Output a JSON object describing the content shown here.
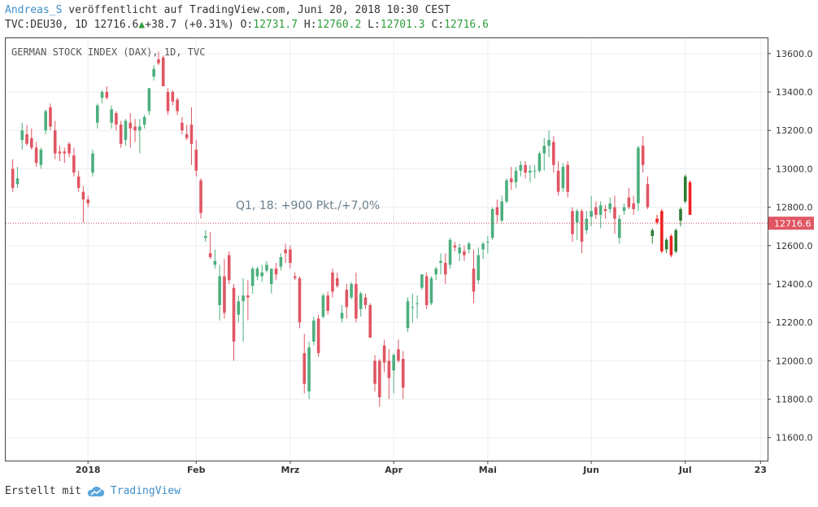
{
  "header": {
    "author": "Andreas_S",
    "published": "veröffentlicht auf TradingView.com, Juni 20, 2018 10:30 CEST",
    "symbol": "TVC:DEU30, 1D",
    "last": "12716.6",
    "change_arrow": "▲",
    "change": "+38.7 (+0.31%)",
    "open_label": "O:",
    "open": "12731.7",
    "high_label": "H:",
    "high": "12760.2",
    "low_label": "L:",
    "low": "12701.3",
    "close_label": "C:",
    "close": "12716.6"
  },
  "footer": {
    "created_with": "Erstellt mit",
    "brand": "TradingView"
  },
  "colors": {
    "up": "#4caf7d",
    "down": "#e05663",
    "up_recent": "#2e7d32",
    "down_recent": "#ee2222",
    "grid": "#eaeef2",
    "price_line": "#d14b58",
    "price_badge": "#e05663"
  },
  "chart_data": {
    "type": "candlestick",
    "title": "GERMAN STOCK INDEX (DAX), 1D, TVC",
    "annotation": "Q1, 18: +900 Pkt./+7,0%",
    "current_price": 12716.6,
    "current_price_label": "12716.6",
    "ylim": [
      11480,
      13680
    ],
    "y_ticks": [
      11600,
      11800,
      12000,
      12200,
      12400,
      12600,
      12800,
      13000,
      13200,
      13400,
      13600
    ],
    "y_tick_labels": [
      "11600.0",
      "11800.0",
      "12000.0",
      "12200.0",
      "12400.0",
      "12600.0",
      "12800.0",
      "13000.0",
      "13200.0",
      "13400.0",
      "13600.0"
    ],
    "x_ticks": [
      {
        "label": "2018",
        "index": 17
      },
      {
        "label": "Feb",
        "index": 40
      },
      {
        "label": "Mrz",
        "index": 60
      },
      {
        "label": "Apr",
        "index": 82
      },
      {
        "label": "Mai",
        "index": 102
      },
      {
        "label": "Jun",
        "index": 124
      },
      {
        "label": "Jul",
        "index": 144
      },
      {
        "label": "23",
        "index": 160
      }
    ],
    "x_count": 162,
    "candles": [
      [
        1,
        13000,
        13050,
        12880,
        12900
      ],
      [
        2,
        12920,
        13010,
        12900,
        12950
      ],
      [
        3,
        13150,
        13240,
        13100,
        13200
      ],
      [
        4,
        13180,
        13230,
        13120,
        13130
      ],
      [
        5,
        13160,
        13210,
        13100,
        13110
      ],
      [
        6,
        13110,
        13140,
        13010,
        13030
      ],
      [
        7,
        13020,
        13110,
        13000,
        13100
      ],
      [
        8,
        13200,
        13310,
        13180,
        13300
      ],
      [
        9,
        13320,
        13340,
        13200,
        13220
      ],
      [
        10,
        13200,
        13250,
        13050,
        13080
      ],
      [
        11,
        13090,
        13120,
        13040,
        13080
      ],
      [
        12,
        13090,
        13110,
        13030,
        13080
      ],
      [
        13,
        13130,
        13140,
        13060,
        13080
      ],
      [
        14,
        13070,
        13110,
        12960,
        12980
      ],
      [
        15,
        12960,
        12990,
        12880,
        12900
      ],
      [
        16,
        12880,
        12910,
        12720,
        12840
      ],
      [
        17,
        12840,
        12860,
        12800,
        12820
      ],
      [
        18,
        12980,
        13100,
        12960,
        13080
      ],
      [
        19,
        13240,
        13340,
        13210,
        13330
      ],
      [
        20,
        13370,
        13410,
        13340,
        13400
      ],
      [
        21,
        13400,
        13430,
        13360,
        13370
      ],
      [
        22,
        13240,
        13330,
        13210,
        13310
      ],
      [
        23,
        13290,
        13300,
        13200,
        13230
      ],
      [
        24,
        13230,
        13250,
        13110,
        13130
      ],
      [
        25,
        13150,
        13260,
        13120,
        13250
      ],
      [
        26,
        13240,
        13290,
        13110,
        13210
      ],
      [
        27,
        13220,
        13260,
        13140,
        13200
      ],
      [
        28,
        13200,
        13260,
        13080,
        13220
      ],
      [
        29,
        13230,
        13280,
        13210,
        13270
      ],
      [
        30,
        13300,
        13420,
        13280,
        13420
      ],
      [
        31,
        13480,
        13540,
        13460,
        13520
      ],
      [
        32,
        13570,
        13610,
        13540,
        13550
      ],
      [
        33,
        13580,
        13590,
        13430,
        13430
      ],
      [
        34,
        13400,
        13420,
        13280,
        13300
      ],
      [
        35,
        13400,
        13410,
        13330,
        13350
      ],
      [
        36,
        13360,
        13370,
        13280,
        13300
      ],
      [
        37,
        13240,
        13270,
        13180,
        13200
      ],
      [
        38,
        13180,
        13230,
        13150,
        13160
      ],
      [
        39,
        13230,
        13320,
        13020,
        13130
      ],
      [
        40,
        13100,
        13150,
        12960,
        12990
      ],
      [
        41,
        12940,
        12950,
        12740,
        12770
      ],
      [
        42,
        12640,
        12680,
        12620,
        12650
      ],
      [
        43,
        12560,
        12670,
        12530,
        12540
      ],
      [
        44,
        12500,
        12580,
        12480,
        12520
      ],
      [
        45,
        12290,
        12500,
        12210,
        12440
      ],
      [
        46,
        12440,
        12530,
        12220,
        12250
      ],
      [
        47,
        12550,
        12570,
        12400,
        12420
      ],
      [
        48,
        12380,
        12400,
        12000,
        12100
      ],
      [
        49,
        12240,
        12340,
        12200,
        12310
      ],
      [
        50,
        12310,
        12430,
        12100,
        12340
      ],
      [
        51,
        12340,
        12420,
        12210,
        12330
      ],
      [
        52,
        12390,
        12490,
        12350,
        12480
      ],
      [
        53,
        12440,
        12490,
        12420,
        12480
      ],
      [
        54,
        12440,
        12500,
        12410,
        12460
      ],
      [
        55,
        12470,
        12520,
        12460,
        12500
      ],
      [
        56,
        12400,
        12480,
        12350,
        12480
      ],
      [
        57,
        12480,
        12510,
        12420,
        12450
      ],
      [
        58,
        12490,
        12560,
        12470,
        12540
      ],
      [
        59,
        12580,
        12610,
        12510,
        12560
      ],
      [
        60,
        12580,
        12600,
        12480,
        12510
      ],
      [
        61,
        12440,
        12460,
        12420,
        12430
      ],
      [
        62,
        12430,
        12440,
        12170,
        12200
      ],
      [
        63,
        12040,
        12140,
        11830,
        11880
      ],
      [
        64,
        11840,
        12100,
        11800,
        12070
      ],
      [
        65,
        12100,
        12230,
        12080,
        12210
      ],
      [
        66,
        12220,
        12240,
        12020,
        12040
      ],
      [
        67,
        12230,
        12350,
        12220,
        12340
      ],
      [
        68,
        12340,
        12360,
        12240,
        12260
      ],
      [
        69,
        12460,
        12480,
        12330,
        12360
      ],
      [
        70,
        12430,
        12460,
        12380,
        12390
      ],
      [
        71,
        12220,
        12290,
        12200,
        12250
      ],
      [
        72,
        12370,
        12400,
        12220,
        12280
      ],
      [
        73,
        12330,
        12410,
        12320,
        12400
      ],
      [
        74,
        12400,
        12460,
        12200,
        12220
      ],
      [
        75,
        12270,
        12360,
        12230,
        12350
      ],
      [
        76,
        12330,
        12350,
        12270,
        12290
      ],
      [
        77,
        12290,
        12300,
        12120,
        12120
      ],
      [
        78,
        12000,
        12030,
        11840,
        11880
      ],
      [
        79,
        12000,
        12010,
        11760,
        11810
      ],
      [
        80,
        12080,
        12110,
        11940,
        11990
      ],
      [
        81,
        12000,
        12060,
        11800,
        11910
      ],
      [
        82,
        11950,
        12040,
        11830,
        12030
      ],
      [
        83,
        12060,
        12110,
        11990,
        12000
      ],
      [
        84,
        12010,
        12050,
        11800,
        11860
      ],
      [
        85,
        12170,
        12330,
        12150,
        12310
      ],
      [
        86,
        12280,
        12350,
        12200,
        12280
      ],
      [
        87,
        12300,
        12340,
        12220,
        12300
      ],
      [
        88,
        12380,
        12450,
        12370,
        12450
      ],
      [
        89,
        12440,
        12460,
        12270,
        12290
      ],
      [
        90,
        12300,
        12440,
        12290,
        12430
      ],
      [
        91,
        12450,
        12490,
        12420,
        12480
      ],
      [
        92,
        12510,
        12560,
        12450,
        12520
      ],
      [
        93,
        12510,
        12560,
        12400,
        12450
      ],
      [
        94,
        12500,
        12640,
        12480,
        12630
      ],
      [
        95,
        12600,
        12620,
        12570,
        12590
      ],
      [
        96,
        12560,
        12610,
        12520,
        12590
      ],
      [
        97,
        12570,
        12600,
        12520,
        12550
      ],
      [
        98,
        12580,
        12620,
        12560,
        12610
      ],
      [
        99,
        12480,
        12580,
        12300,
        12360
      ],
      [
        100,
        12420,
        12590,
        12400,
        12550
      ],
      [
        101,
        12580,
        12620,
        12530,
        12610
      ],
      [
        102,
        12620,
        12650,
        12560,
        12620
      ],
      [
        103,
        12640,
        12800,
        12630,
        12790
      ],
      [
        104,
        12800,
        12840,
        12720,
        12760
      ],
      [
        105,
        12730,
        12860,
        12720,
        12830
      ],
      [
        106,
        12830,
        12950,
        12820,
        12940
      ],
      [
        107,
        12950,
        13010,
        12890,
        12930
      ],
      [
        108,
        12930,
        13010,
        12900,
        12990
      ],
      [
        109,
        12990,
        13040,
        12960,
        13020
      ],
      [
        110,
        13020,
        13040,
        12950,
        12980
      ],
      [
        111,
        12980,
        13020,
        12930,
        12990
      ],
      [
        112,
        12990,
        13020,
        12950,
        12990
      ],
      [
        113,
        12990,
        13090,
        12980,
        13080
      ],
      [
        114,
        13080,
        13160,
        12990,
        13120
      ],
      [
        115,
        13120,
        13200,
        13060,
        13150
      ],
      [
        116,
        13140,
        13170,
        12980,
        13020
      ],
      [
        117,
        12990,
        13040,
        12860,
        12880
      ],
      [
        118,
        12900,
        13030,
        12880,
        13010
      ],
      [
        119,
        13020,
        13040,
        12850,
        12880
      ],
      [
        120,
        12780,
        12800,
        12620,
        12660
      ],
      [
        121,
        12720,
        12790,
        12630,
        12780
      ],
      [
        122,
        12780,
        12790,
        12560,
        12620
      ],
      [
        123,
        12680,
        12780,
        12660,
        12740
      ],
      [
        124,
        12750,
        12860,
        12700,
        12780
      ],
      [
        125,
        12800,
        12830,
        12740,
        12760
      ],
      [
        126,
        12760,
        12830,
        12690,
        12810
      ],
      [
        127,
        12790,
        12810,
        12740,
        12780
      ],
      [
        128,
        12790,
        12850,
        12770,
        12820
      ],
      [
        129,
        12800,
        12860,
        12660,
        12740
      ],
      [
        130,
        12640,
        12760,
        12610,
        12740
      ],
      [
        131,
        12780,
        12820,
        12760,
        12800
      ],
      [
        132,
        12850,
        12900,
        12790,
        12800
      ],
      [
        133,
        12820,
        12860,
        12760,
        12790
      ],
      [
        134,
        12820,
        13120,
        12780,
        13110
      ],
      [
        135,
        13120,
        13170,
        12980,
        13020
      ],
      [
        136,
        12920,
        12960,
        12790,
        12800
      ],
      [
        137,
        12650,
        12690,
        12610,
        12680
      ],
      [
        138,
        12740,
        12760,
        12710,
        12720
      ],
      [
        139,
        12780,
        12790,
        12560,
        12570
      ],
      [
        140,
        12580,
        12640,
        12560,
        12630
      ],
      [
        141,
        12650,
        12660,
        12540,
        12550
      ],
      [
        142,
        12570,
        12690,
        12560,
        12680
      ],
      [
        143,
        12730,
        12800,
        12700,
        12790
      ],
      [
        144,
        12830,
        12970,
        12820,
        12960
      ],
      [
        145,
        12930,
        12940,
        12760,
        12760
      ]
    ]
  }
}
